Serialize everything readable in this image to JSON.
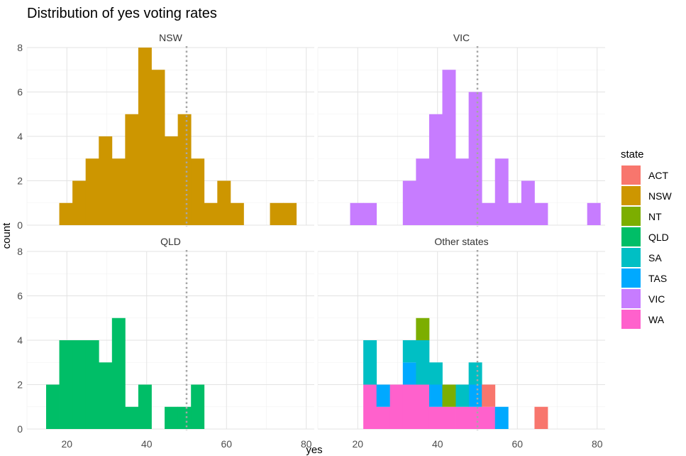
{
  "chart_data": {
    "type": "bar",
    "title": "Distribution of yes voting rates",
    "xlabel": "yes",
    "ylabel": "count",
    "xlim": [
      10,
      82
    ],
    "ylim": [
      0,
      8
    ],
    "x_ticks": [
      20,
      40,
      60,
      80
    ],
    "y_ticks": [
      0,
      2,
      4,
      6,
      8
    ],
    "reference_line_x": 50,
    "grid": true,
    "legend": {
      "title": "state",
      "placement": "right",
      "entries": [
        {
          "name": "ACT",
          "color": "#F8766D"
        },
        {
          "name": "NSW",
          "color": "#CD9600"
        },
        {
          "name": "NT",
          "color": "#7CAE00"
        },
        {
          "name": "QLD",
          "color": "#00BE67"
        },
        {
          "name": "SA",
          "color": "#00BFC4"
        },
        {
          "name": "TAS",
          "color": "#00A9FF"
        },
        {
          "name": "VIC",
          "color": "#C77CFF"
        },
        {
          "name": "WA",
          "color": "#FF61CC"
        }
      ]
    },
    "bin_width": 3.3,
    "bin_starts": [
      14.8,
      18.1,
      21.4,
      24.7,
      28.0,
      31.3,
      34.6,
      37.9,
      41.2,
      44.5,
      47.8,
      51.1,
      54.4,
      57.7,
      61.0,
      64.3,
      67.6,
      70.9,
      74.2,
      77.5
    ],
    "panels": [
      {
        "label": "NSW",
        "series": [
          {
            "name": "NSW",
            "values": [
              0,
              1,
              2,
              3,
              4,
              3,
              5,
              8,
              7,
              4,
              5,
              3,
              1,
              2,
              1,
              0,
              0,
              1,
              1,
              0
            ]
          }
        ]
      },
      {
        "label": "VIC",
        "series": [
          {
            "name": "VIC",
            "values": [
              0,
              1,
              1,
              0,
              0,
              2,
              3,
              5,
              7,
              3,
              6,
              1,
              3,
              1,
              2,
              1,
              0,
              0,
              0,
              1
            ]
          }
        ]
      },
      {
        "label": "QLD",
        "series": [
          {
            "name": "QLD",
            "values": [
              2,
              4,
              4,
              4,
              3,
              5,
              1,
              2,
              0,
              1,
              1,
              2,
              0,
              0,
              0,
              0,
              0,
              0,
              0,
              0
            ]
          }
        ]
      },
      {
        "label": "Other states",
        "series": [
          {
            "name": "WA",
            "values": [
              0,
              0,
              2,
              1,
              2,
              2,
              2,
              1,
              1,
              1,
              1,
              1,
              0,
              0,
              0,
              0,
              0,
              0,
              0,
              0
            ]
          },
          {
            "name": "TAS",
            "values": [
              0,
              0,
              0,
              1,
              0,
              1,
              0,
              1,
              0,
              0,
              1,
              0,
              1,
              0,
              0,
              0,
              0,
              0,
              0,
              0
            ]
          },
          {
            "name": "SA",
            "values": [
              0,
              0,
              2,
              0,
              0,
              1,
              2,
              1,
              0,
              1,
              1,
              0,
              0,
              0,
              0,
              0,
              0,
              0,
              0,
              0
            ]
          },
          {
            "name": "NT",
            "values": [
              0,
              0,
              0,
              0,
              0,
              0,
              1,
              0,
              1,
              0,
              0,
              0,
              0,
              0,
              0,
              0,
              0,
              0,
              0,
              0
            ]
          },
          {
            "name": "ACT",
            "values": [
              0,
              0,
              0,
              0,
              0,
              0,
              0,
              0,
              0,
              0,
              0,
              1,
              0,
              0,
              0,
              1,
              0,
              0,
              0,
              0
            ]
          }
        ]
      }
    ]
  }
}
